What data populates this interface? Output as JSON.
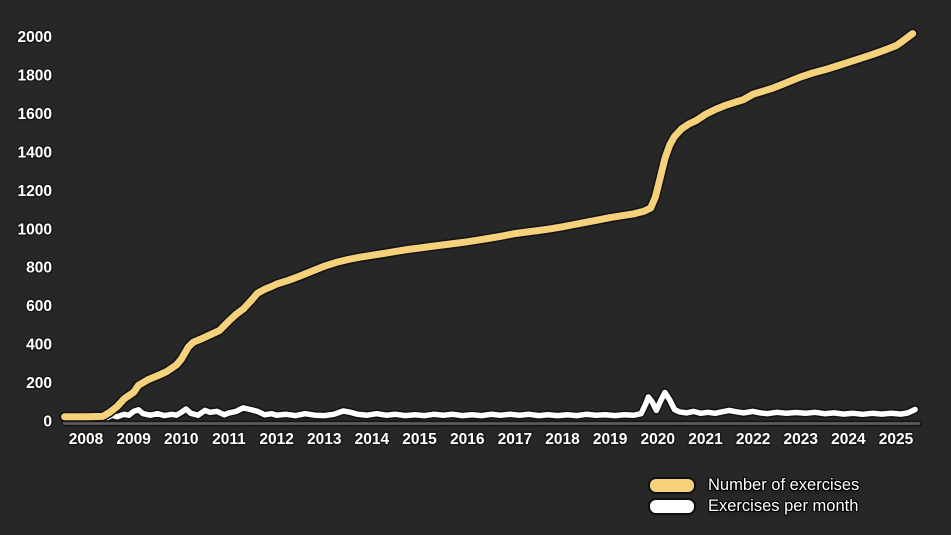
{
  "app": {
    "background": "#272727",
    "axis_color": "#5b5b5b"
  },
  "legend": {
    "items": [
      {
        "label": "Number of exercises",
        "color": "#F5D17B"
      },
      {
        "label": "Exercises per month",
        "color": "#FFFFFF"
      }
    ]
  },
  "chart_data": {
    "type": "line",
    "title": "",
    "xlabel": "",
    "ylabel": "",
    "grid": false,
    "legend_position": "bottom-right",
    "xlim": [
      2007.5,
      2025.6
    ],
    "ylim": [
      0,
      2080
    ],
    "x_ticks": [
      2008,
      2009,
      2010,
      2011,
      2012,
      2013,
      2014,
      2015,
      2016,
      2017,
      2018,
      2019,
      2020,
      2021,
      2022,
      2023,
      2024,
      2025
    ],
    "y_ticks": [
      0,
      200,
      400,
      600,
      800,
      1000,
      1200,
      1400,
      1600,
      1800,
      2000
    ],
    "series": [
      {
        "name": "Number of exercises",
        "color": "#F5D17B",
        "outline": "#141414",
        "width": 7,
        "x": [
          2007.55,
          2008.0,
          2008.35,
          2008.5,
          2008.65,
          2008.8,
          2009.0,
          2009.1,
          2009.3,
          2009.5,
          2009.7,
          2009.9,
          2010.0,
          2010.15,
          2010.25,
          2010.4,
          2010.6,
          2010.8,
          2011.0,
          2011.15,
          2011.3,
          2011.45,
          2011.6,
          2011.75,
          2011.9,
          2012.0,
          2012.25,
          2012.5,
          2012.75,
          2013.0,
          2013.25,
          2013.5,
          2013.75,
          2014.0,
          2014.25,
          2014.5,
          2014.75,
          2015.0,
          2015.25,
          2015.5,
          2015.75,
          2016.0,
          2016.25,
          2016.5,
          2016.75,
          2017.0,
          2017.25,
          2017.5,
          2017.75,
          2018.0,
          2018.25,
          2018.5,
          2018.75,
          2019.0,
          2019.25,
          2019.5,
          2019.7,
          2019.85,
          2019.95,
          2020.05,
          2020.15,
          2020.25,
          2020.35,
          2020.5,
          2020.65,
          2020.8,
          2021.0,
          2021.2,
          2021.4,
          2021.6,
          2021.8,
          2022.0,
          2022.2,
          2022.4,
          2022.6,
          2022.8,
          2023.0,
          2023.25,
          2023.5,
          2023.75,
          2024.0,
          2024.25,
          2024.5,
          2024.75,
          2025.0,
          2025.15,
          2025.35
        ],
        "y": [
          22,
          22,
          24,
          45,
          75,
          115,
          150,
          185,
          215,
          235,
          258,
          292,
          322,
          385,
          410,
          425,
          448,
          470,
          520,
          555,
          582,
          622,
          665,
          685,
          700,
          712,
          732,
          755,
          780,
          805,
          825,
          840,
          852,
          862,
          872,
          882,
          892,
          900,
          908,
          916,
          924,
          932,
          942,
          952,
          963,
          975,
          983,
          991,
          1000,
          1010,
          1022,
          1034,
          1046,
          1058,
          1068,
          1078,
          1090,
          1108,
          1165,
          1265,
          1365,
          1435,
          1480,
          1520,
          1545,
          1562,
          1595,
          1620,
          1640,
          1656,
          1672,
          1700,
          1715,
          1730,
          1750,
          1770,
          1790,
          1810,
          1827,
          1846,
          1866,
          1886,
          1906,
          1928,
          1952,
          1978,
          2015
        ]
      },
      {
        "name": "Exercises per month",
        "color": "#FFFFFF",
        "outline": "#141414",
        "width": 5.5,
        "x": [
          2008.45,
          2008.55,
          2008.65,
          2008.8,
          2008.9,
          2009.0,
          2009.1,
          2009.2,
          2009.35,
          2009.5,
          2009.65,
          2009.8,
          2009.9,
          2010.0,
          2010.1,
          2010.2,
          2010.35,
          2010.5,
          2010.6,
          2010.75,
          2010.9,
          2011.0,
          2011.15,
          2011.3,
          2011.45,
          2011.6,
          2011.75,
          2011.9,
          2012.0,
          2012.2,
          2012.4,
          2012.6,
          2012.8,
          2013.0,
          2013.2,
          2013.4,
          2013.55,
          2013.7,
          2013.9,
          2014.1,
          2014.3,
          2014.5,
          2014.7,
          2014.9,
          2015.1,
          2015.3,
          2015.5,
          2015.7,
          2015.9,
          2016.1,
          2016.3,
          2016.5,
          2016.7,
          2016.9,
          2017.1,
          2017.3,
          2017.5,
          2017.7,
          2017.9,
          2018.1,
          2018.3,
          2018.5,
          2018.7,
          2018.9,
          2019.1,
          2019.3,
          2019.5,
          2019.65,
          2019.75,
          2019.8,
          2019.88,
          2019.97,
          2020.05,
          2020.15,
          2020.25,
          2020.35,
          2020.45,
          2020.6,
          2020.75,
          2020.9,
          2021.05,
          2021.2,
          2021.35,
          2021.5,
          2021.65,
          2021.8,
          2022.0,
          2022.15,
          2022.3,
          2022.5,
          2022.7,
          2022.9,
          2023.1,
          2023.3,
          2023.5,
          2023.7,
          2023.9,
          2024.1,
          2024.3,
          2024.5,
          2024.7,
          2024.9,
          2025.1,
          2025.25,
          2025.4
        ],
        "y": [
          18,
          30,
          22,
          35,
          30,
          50,
          58,
          38,
          30,
          38,
          28,
          35,
          30,
          45,
          62,
          40,
          30,
          55,
          45,
          50,
          32,
          42,
          50,
          68,
          60,
          50,
          32,
          38,
          30,
          35,
          28,
          38,
          30,
          28,
          35,
          52,
          45,
          35,
          30,
          38,
          30,
          35,
          28,
          32,
          28,
          35,
          30,
          35,
          28,
          32,
          28,
          35,
          30,
          35,
          30,
          35,
          28,
          33,
          28,
          33,
          28,
          35,
          30,
          33,
          28,
          33,
          30,
          38,
          90,
          125,
          100,
          55,
          100,
          148,
          110,
          60,
          48,
          42,
          50,
          40,
          45,
          40,
          48,
          55,
          48,
          42,
          50,
          42,
          38,
          45,
          40,
          44,
          40,
          45,
          38,
          42,
          36,
          40,
          35,
          40,
          36,
          40,
          36,
          42,
          60
        ]
      }
    ]
  }
}
